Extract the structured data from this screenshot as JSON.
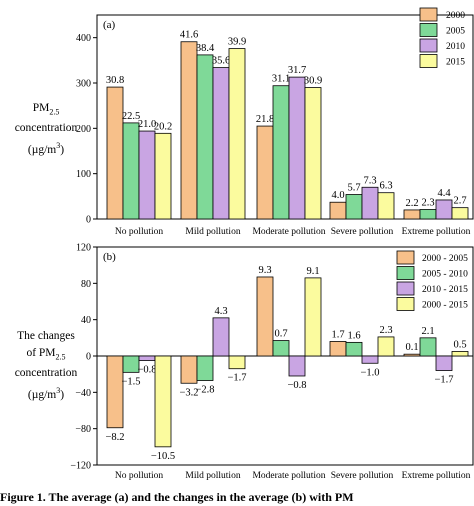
{
  "colors": {
    "c2000": "#F7C08A",
    "c2005": "#7FD998",
    "c2010": "#C9A5E3",
    "c2015": "#FBFB9E",
    "axis": "#000000"
  },
  "chart_data": [
    {
      "type": "bar",
      "panel_label": "(a)",
      "ylabel_lines": [
        "PM",
        "2.5",
        "concentration",
        "(µg/m",
        "3",
        ")"
      ],
      "ylim": [
        0,
        450
      ],
      "yticks": [
        0,
        100,
        200,
        300,
        400
      ],
      "categories": [
        "No pollution",
        "Mild pollution",
        "Moderate pollution",
        "Severe pollution",
        "Extreme pollution"
      ],
      "legend_position": "top-right",
      "series": [
        {
          "name": "2000",
          "values": [
            291,
            391,
            205,
            37,
            20
          ],
          "labels": [
            "30.8",
            "41.6",
            "21.8",
            "4.0",
            "2.2"
          ]
        },
        {
          "name": "2005",
          "values": [
            212,
            362,
            294,
            54,
            21
          ],
          "labels": [
            "22.5",
            "38.4",
            "31.1",
            "5.7",
            "2.3"
          ]
        },
        {
          "name": "2010",
          "values": [
            194,
            334,
            313,
            70,
            42
          ],
          "labels": [
            "21.0",
            "35.6",
            "31.7",
            "7.3",
            "4.4"
          ]
        },
        {
          "name": "2015",
          "values": [
            189,
            376,
            290,
            58,
            25
          ],
          "labels": [
            "20.2",
            "39.9",
            "30.9",
            "6.3",
            "2.7"
          ]
        }
      ]
    },
    {
      "type": "bar",
      "panel_label": "(b)",
      "ylabel_lines": [
        "The changes",
        "of PM",
        "2.5",
        "concentration",
        "(µg/m",
        "3",
        ")"
      ],
      "ylim": [
        -120,
        120
      ],
      "yticks": [
        -120,
        -80,
        -40,
        0,
        40,
        80,
        120
      ],
      "categories": [
        "No pollution",
        "Mild pollution",
        "Moderate pollution",
        "Severe pollution",
        "Extreme pollution"
      ],
      "legend_position": "top-right",
      "series": [
        {
          "name": "2000 - 2005",
          "values": [
            -79,
            -30,
            87,
            16,
            2
          ],
          "labels": [
            "−8.2",
            "−3.2",
            "9.3",
            "1.7",
            "0.1"
          ]
        },
        {
          "name": "2005 - 2010",
          "values": [
            -18,
            -27,
            17,
            15,
            20
          ],
          "labels": [
            "−1.5",
            "−2.8",
            "0.7",
            "1.6",
            "2.1"
          ]
        },
        {
          "name": "2010 - 2015",
          "values": [
            -5,
            42,
            -22,
            -8,
            -16
          ],
          "labels": [
            "−0.8",
            "4.3",
            "−0.8",
            "−1.0",
            "−1.7"
          ]
        },
        {
          "name": "2000 - 2015",
          "values": [
            -100,
            -14,
            86,
            21,
            5
          ],
          "labels": [
            "−10.5",
            "−1.7",
            "9.1",
            "2.3",
            "0.5"
          ]
        }
      ]
    }
  ],
  "caption": "Figure 1. The average (a) and the changes in the average (b) with PM"
}
